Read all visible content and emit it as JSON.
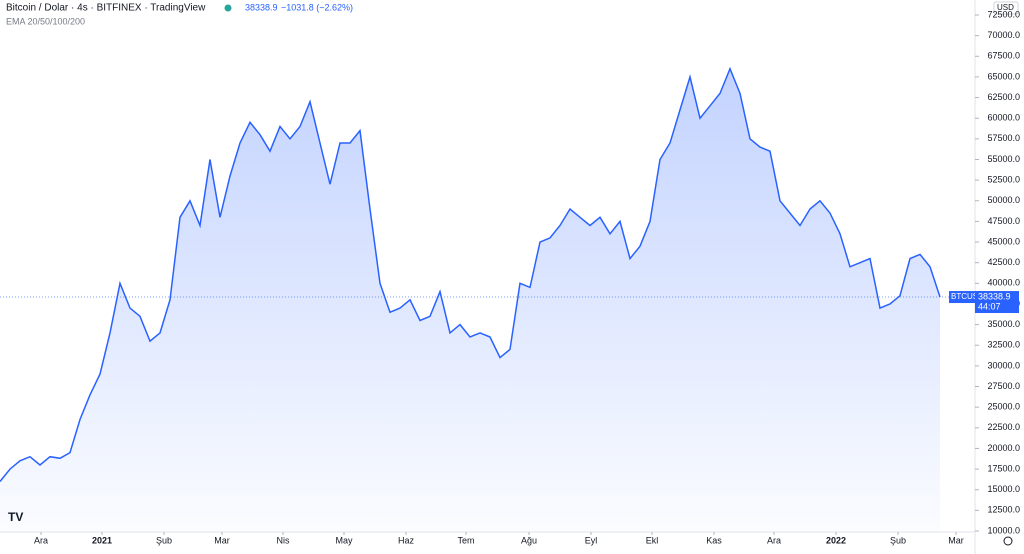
{
  "chart_data": {
    "type": "area",
    "title": "Bitcoin / Dolar · 4s · BITFINEX · TradingView",
    "change": "−1031.8 (−2.62%)",
    "indicator": "EMA 20/50/100/200",
    "currency": "USD",
    "symbol": "BTCUSD",
    "timer": "44:07",
    "color": "#2962ff",
    "values": [
      16000,
      17500,
      18500,
      19000,
      18000,
      19000,
      18800,
      19500,
      23500,
      26500,
      29000,
      34000,
      40000,
      37000,
      36000,
      33000,
      34000,
      38000,
      48000,
      50000,
      47000,
      55000,
      48000,
      53000,
      57000,
      59500,
      58000,
      56000,
      59000,
      57500,
      59000,
      62000,
      57000,
      52000,
      57000,
      57000,
      58500,
      49000,
      40000,
      36500,
      37000,
      38000,
      35500,
      36000,
      39000,
      34000,
      35000,
      33500,
      34000,
      33500,
      31000,
      32000,
      40000,
      39500,
      45000,
      45500,
      47000,
      49000,
      48000,
      47000,
      48000,
      46000,
      47500,
      43000,
      44500,
      47500,
      55000,
      57000,
      61000,
      65000,
      60000,
      61500,
      63000,
      66000,
      63000,
      57500,
      56500,
      56000,
      50000,
      48500,
      47000,
      49000,
      50000,
      48500,
      46000,
      42000,
      42500,
      43000,
      37000,
      37500,
      38500,
      43000,
      43500,
      42000,
      38338.9
    ],
    "xlim": [
      0,
      97.5
    ],
    "xticks": [
      {
        "value": 4.1,
        "label": "Ara"
      },
      {
        "value": 10.2,
        "label": "2021"
      },
      {
        "value": 16.4,
        "label": "Şub"
      },
      {
        "value": 22.2,
        "label": "Mar"
      },
      {
        "value": 28.3,
        "label": "Nis"
      },
      {
        "value": 34.4,
        "label": "May"
      },
      {
        "value": 40.6,
        "label": "Haz"
      },
      {
        "value": 46.6,
        "label": "Tem"
      },
      {
        "value": 52.9,
        "label": "Ağu"
      },
      {
        "value": 59.1,
        "label": "Eyl"
      },
      {
        "value": 65.2,
        "label": "Ekl"
      },
      {
        "value": 71.4,
        "label": "Kas"
      },
      {
        "value": 77.4,
        "label": "Ara"
      },
      {
        "value": 83.6,
        "label": "2022"
      },
      {
        "value": 89.8,
        "label": "Şub"
      },
      {
        "value": 95.6,
        "label": "Mar"
      }
    ],
    "ylim": [
      10000,
      72500
    ],
    "yticks": [
      {
        "value": 10000,
        "label": "10000.0"
      },
      {
        "value": 12500,
        "label": "12500.0"
      },
      {
        "value": 15000,
        "label": "15000.0"
      },
      {
        "value": 17500,
        "label": "17500.0"
      },
      {
        "value": 20000,
        "label": "20000.0"
      },
      {
        "value": 22500,
        "label": "22500.0"
      },
      {
        "value": 25000,
        "label": "25000.0"
      },
      {
        "value": 27500,
        "label": "27500.0"
      },
      {
        "value": 30000,
        "label": "30000.0"
      },
      {
        "value": 32500,
        "label": "32500.0"
      },
      {
        "value": 35000,
        "label": "35000.0"
      },
      {
        "value": 37500,
        "label": "37500.0"
      },
      {
        "value": 40000,
        "label": "40000.0"
      },
      {
        "value": 42500,
        "label": "42500.0"
      },
      {
        "value": 45000,
        "label": "45000.0"
      },
      {
        "value": 47500,
        "label": "47500.0"
      },
      {
        "value": 50000,
        "label": "50000.0"
      },
      {
        "value": 52500,
        "label": "52500.0"
      },
      {
        "value": 55000,
        "label": "55000.0"
      },
      {
        "value": 57500,
        "label": "57500.0"
      },
      {
        "value": 60000,
        "label": "60000.0"
      },
      {
        "value": 62500,
        "label": "62500.0"
      },
      {
        "value": 65000,
        "label": "65000.0"
      },
      {
        "value": 67500,
        "label": "67500.0"
      },
      {
        "value": 70000,
        "label": "70000.0"
      },
      {
        "value": 72500,
        "label": "72500.0"
      }
    ]
  }
}
